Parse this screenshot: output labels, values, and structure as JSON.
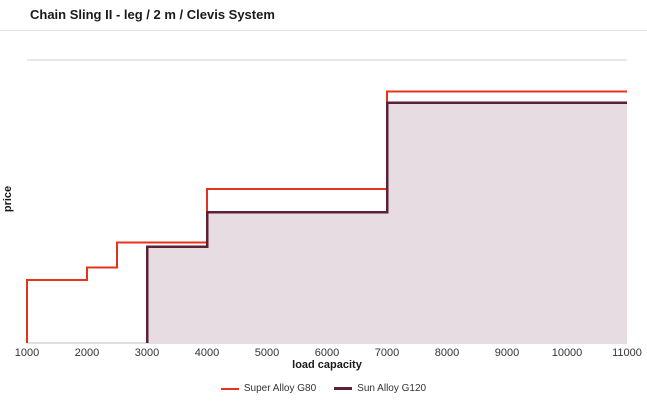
{
  "chart_data": {
    "type": "line",
    "subtype": "step",
    "title": "Chain Sling II - leg / 2 m / Clevis System",
    "xlabel": "load capacity",
    "ylabel": "price",
    "xlim": [
      1000,
      11000
    ],
    "ylim": [
      0,
      450
    ],
    "x_ticks": [
      1000,
      2000,
      3000,
      4000,
      5000,
      6000,
      7000,
      8000,
      9000,
      10000,
      11000
    ],
    "y_ticks_visible": false,
    "grid": "top-border-only",
    "legend_position": "bottom-center",
    "axis_color": "#c0c0c0",
    "top_border_color": "#d0d0d0",
    "tick_label_color": "#333333",
    "series": [
      {
        "name": "Super Alloy G80",
        "color": "#e8331c",
        "stroke_width": 2,
        "fill": false,
        "points": [
          [
            1000,
            0
          ],
          [
            1000,
            100
          ],
          [
            2000,
            100
          ],
          [
            2000,
            120
          ],
          [
            2500,
            120
          ],
          [
            2500,
            160
          ],
          [
            4000,
            160
          ],
          [
            4000,
            245
          ],
          [
            7000,
            245
          ],
          [
            7000,
            400
          ],
          [
            11000,
            400
          ]
        ]
      },
      {
        "name": "Sun Alloy G120",
        "color": "#5c2135",
        "stroke_width": 2.5,
        "fill": true,
        "fill_color": "#e6dce1",
        "points": [
          [
            3000,
            0
          ],
          [
            3000,
            153
          ],
          [
            4000,
            153
          ],
          [
            4000,
            208
          ],
          [
            7000,
            208
          ],
          [
            7000,
            382
          ],
          [
            11000,
            382
          ]
        ]
      }
    ]
  }
}
